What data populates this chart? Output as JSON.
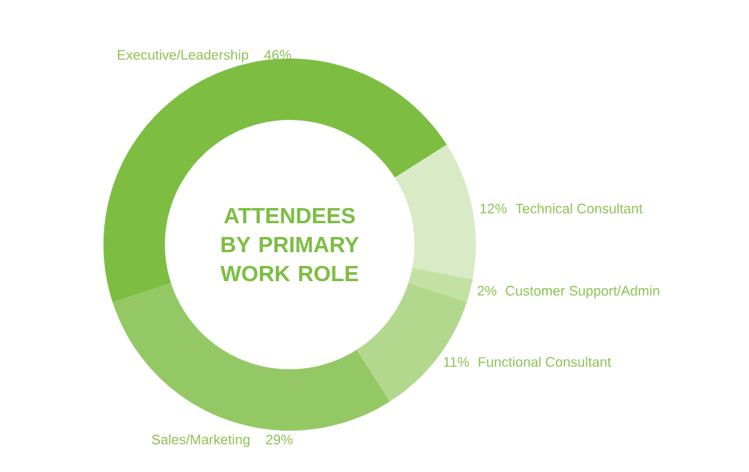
{
  "chart_data": {
    "type": "donut",
    "title": "ATTENDEES BY PRIMARY WORK ROLE",
    "categories": [
      "Executive/Leadership",
      "Technical Consultant",
      "Customer Support/Admin",
      "Functional Consultant",
      "Sales/Marketing"
    ],
    "values": [
      46,
      12,
      2,
      11,
      29
    ],
    "value_labels": [
      "46%",
      "12%",
      "2%",
      "11%",
      "29%"
    ],
    "colors": [
      "#7dbd42",
      "#d9ebc6",
      "#c3e1a3",
      "#b2d88d",
      "#93c864"
    ]
  }
}
